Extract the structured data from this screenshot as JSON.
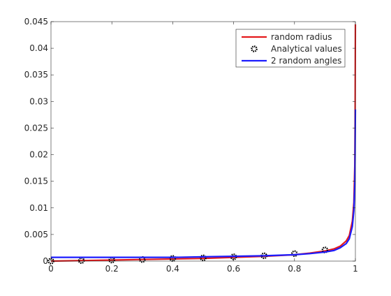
{
  "chart_data": {
    "type": "line",
    "title": "",
    "xlabel": "",
    "ylabel": "",
    "xlim": [
      0,
      1
    ],
    "ylim": [
      0,
      0.045
    ],
    "x_ticks": [
      "0",
      "0.2",
      "0.4",
      "0.6",
      "0.8",
      "1"
    ],
    "y_ticks": [
      "0",
      "0.005",
      "0.01",
      "0.015",
      "0.02",
      "0.025",
      "0.03",
      "0.035",
      "0.04",
      "0.045"
    ],
    "grid": false,
    "legend_position": "top-right",
    "series": [
      {
        "name": "random radius",
        "color": "#e41a1c",
        "style": "line",
        "x": [
          0,
          0.1,
          0.2,
          0.3,
          0.4,
          0.5,
          0.6,
          0.7,
          0.8,
          0.85,
          0.9,
          0.93,
          0.95,
          0.97,
          0.98,
          0.99,
          0.995,
          0.998,
          0.999,
          1.0
        ],
        "y": [
          0.0,
          0.0001,
          0.0002,
          0.0003,
          0.0004,
          0.0005,
          0.0007,
          0.0009,
          0.0012,
          0.0015,
          0.0019,
          0.0023,
          0.0028,
          0.0038,
          0.0048,
          0.0075,
          0.011,
          0.018,
          0.026,
          0.0445
        ]
      },
      {
        "name": "Analytical values",
        "color": "#000000",
        "style": "markers",
        "marker": "o",
        "x": [
          0,
          0.1,
          0.2,
          0.3,
          0.4,
          0.5,
          0.6,
          0.7,
          0.8,
          0.9
        ],
        "y": [
          0.0,
          0.0001,
          0.0002,
          0.0003,
          0.0005,
          0.0006,
          0.0008,
          0.001,
          0.0014,
          0.0021
        ]
      },
      {
        "name": "2 random angles",
        "color": "#1c1cff",
        "style": "line",
        "x": [
          0,
          0.1,
          0.2,
          0.3,
          0.4,
          0.5,
          0.6,
          0.7,
          0.8,
          0.85,
          0.9,
          0.93,
          0.95,
          0.97,
          0.98,
          0.99,
          0.995,
          0.998,
          0.999,
          1.0
        ],
        "y": [
          0.0007,
          0.0007,
          0.0007,
          0.0007,
          0.0007,
          0.0008,
          0.0009,
          0.001,
          0.0012,
          0.0014,
          0.0017,
          0.002,
          0.0025,
          0.0033,
          0.0042,
          0.0065,
          0.0095,
          0.0145,
          0.02,
          0.0285
        ]
      }
    ]
  }
}
